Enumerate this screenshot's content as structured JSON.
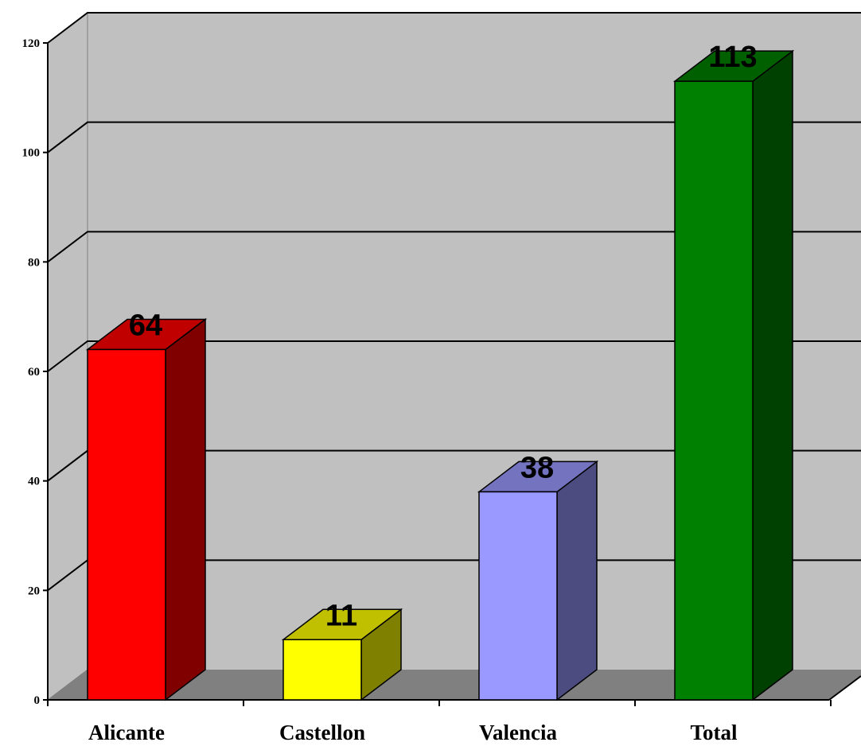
{
  "chart_data": {
    "type": "bar",
    "categories": [
      "Alicante",
      "Castellon",
      "Valencia",
      "Total"
    ],
    "values": [
      64,
      11,
      38,
      113
    ],
    "data_labels": [
      "64",
      "11",
      "38",
      "113"
    ],
    "ylim": [
      0,
      120
    ],
    "yticks": [
      "0",
      "20",
      "40",
      "60",
      "80",
      "100",
      "120"
    ],
    "grid": true,
    "legend": "none",
    "colors": {
      "front": [
        "#ff0000",
        "#ffff00",
        "#9999ff",
        "#008000"
      ],
      "side": [
        "#800000",
        "#808000",
        "#4c4c80",
        "#004000"
      ],
      "top": [
        "#c00000",
        "#c0c000",
        "#7373bf",
        "#006000"
      ],
      "wall": "#c0c0c0",
      "floor": "#808080"
    }
  }
}
